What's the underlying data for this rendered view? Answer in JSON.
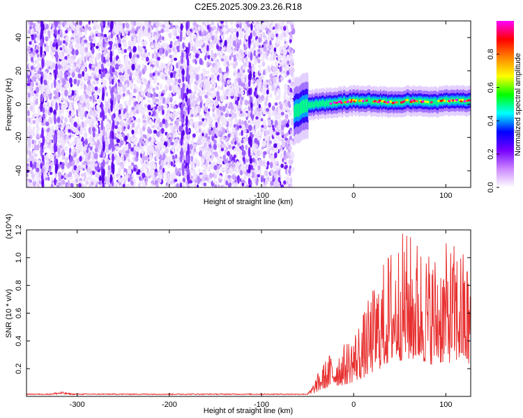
{
  "title": "C2E5.2025.309.23.26.R18",
  "chart_data": [
    {
      "type": "heatmap",
      "xlabel": "Height of straight line (km)",
      "ylabel": "Frequency (Hz)",
      "xlim": [
        -355,
        127
      ],
      "ylim": [
        -50,
        50
      ],
      "xticks": [
        -300,
        -200,
        -100,
        0,
        100
      ],
      "yticks": [
        -40,
        -20,
        0,
        20,
        40
      ],
      "colorbar": {
        "label": "Normalized spectral amplitude",
        "range": [
          0.0,
          1.0
        ],
        "ticks": [
          "0.0",
          "0.2",
          "0.4",
          "0.6",
          "0.8"
        ],
        "colors": [
          "#ffffff",
          "#cc88ff",
          "#7700ff",
          "#0000ff",
          "#00ffff",
          "#00ff00",
          "#ffff00",
          "#ff8800",
          "#ff0000",
          "#ff00ff"
        ]
      },
      "noise_region": [
        -355,
        -65
      ],
      "signal_track": {
        "x": [
          -65,
          -55,
          -40,
          -20,
          0,
          20,
          40,
          60,
          80,
          100,
          127
        ],
        "y": [
          -5,
          -1,
          0,
          1,
          2,
          2,
          1,
          2,
          1,
          2,
          2
        ]
      }
    },
    {
      "type": "line",
      "xlabel": "Height of straight line (km)",
      "ylabel": "SNR (10 * v/v)",
      "yexponent": "(x10^4)",
      "xlim": [
        -355,
        127
      ],
      "ylim": [
        0,
        1.2
      ],
      "xticks": [
        -300,
        -200,
        -100,
        0,
        100
      ],
      "yticks": [
        "0.2",
        "0.4",
        "0.6",
        "0.8",
        "1.0",
        "1.2"
      ],
      "color": "#e83030",
      "envelope": {
        "x": [
          -355,
          -330,
          -318,
          -305,
          -100,
          -50,
          -45,
          -35,
          -25,
          -10,
          0,
          10,
          25,
          40,
          55,
          70,
          85,
          100,
          115,
          127
        ],
        "y": [
          0.02,
          0.02,
          0.04,
          0.02,
          0.02,
          0.02,
          0.08,
          0.22,
          0.32,
          0.38,
          0.48,
          0.6,
          0.85,
          1.1,
          1.2,
          1.15,
          1.05,
          1.1,
          1.12,
          0.95
        ]
      }
    }
  ]
}
